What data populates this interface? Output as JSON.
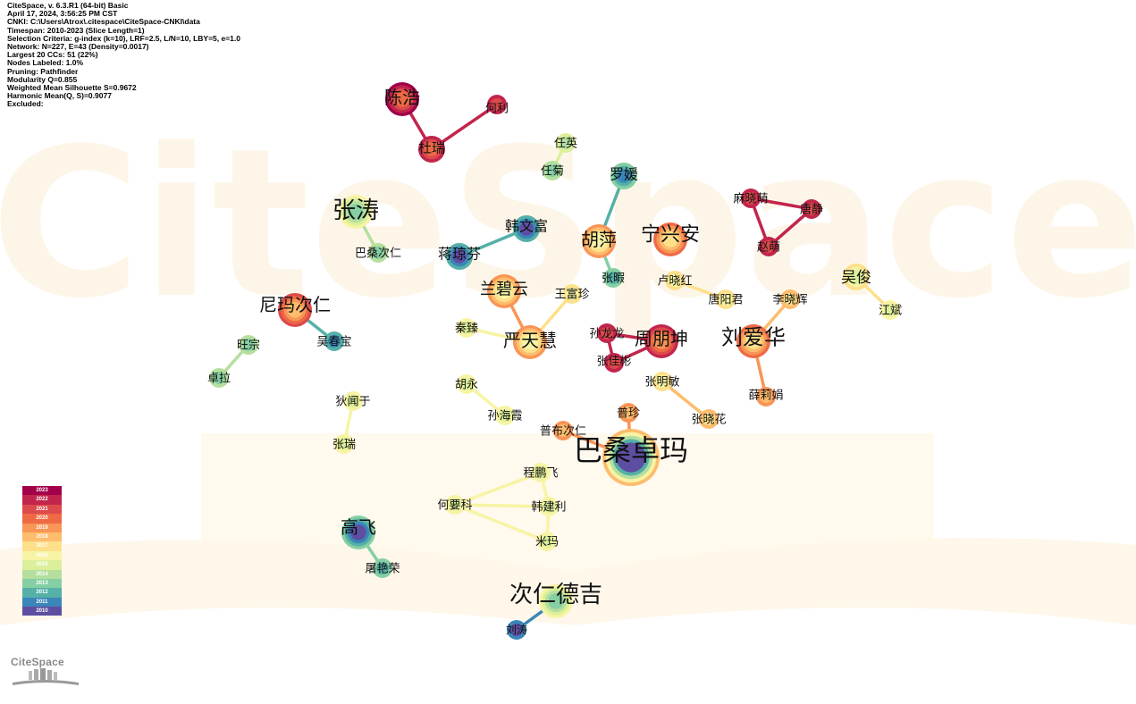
{
  "info_lines": [
    "CiteSpace, v. 6.3.R1 (64-bit) Basic",
    "April 17, 2024, 3:56:25 PM CST",
    "CNKI: C:\\Users\\Atrox\\.citespace\\CiteSpace-CNKI\\data",
    "Timespan: 2010-2023 (Slice Length=1)",
    "Selection Criteria: g-index (k=10), LRF=2.5, L/N=10, LBY=5, e=1.0",
    "Network: N=227, E=43 (Density=0.0017)",
    "Largest 20 CCs: 51 (22%)",
    "Nodes Labeled: 1.0%",
    "Pruning: Pathfinder",
    "Modularity Q=0.855",
    "Weighted Mean Silhouette S=0.9672",
    "Harmonic Mean(Q, S)=0.9077",
    "Excluded:"
  ],
  "watermark": {
    "text": "CiteSpace"
  },
  "logo": {
    "text": "CiteSpace"
  },
  "legend": [
    {
      "year": "2023",
      "color": "#a2004a"
    },
    {
      "year": "2022",
      "color": "#c2254c"
    },
    {
      "year": "2021",
      "color": "#dd4a4c"
    },
    {
      "year": "2020",
      "color": "#ee6a45"
    },
    {
      "year": "2019",
      "color": "#f99556"
    },
    {
      "year": "2018",
      "color": "#fdbd6d"
    },
    {
      "year": "2017",
      "color": "#fee08b"
    },
    {
      "year": "2016",
      "color": "#f7f4a4"
    },
    {
      "year": "2015",
      "color": "#dcef9a"
    },
    {
      "year": "2014",
      "color": "#b4df9e"
    },
    {
      "year": "2013",
      "color": "#86cfa3"
    },
    {
      "year": "2012",
      "color": "#55b0a7"
    },
    {
      "year": "2011",
      "color": "#3a86b8"
    },
    {
      "year": "2010",
      "color": "#5e4ea2"
    }
  ],
  "nodes": [
    {
      "id": "chenhao",
      "label": "陈浩",
      "year": "2023",
      "size": "large"
    },
    {
      "id": "heli",
      "label": "何利",
      "year": "2022",
      "size": "small"
    },
    {
      "id": "durui",
      "label": "杜瑞",
      "year": "2022",
      "size": "medium"
    },
    {
      "id": "renying",
      "label": "任英",
      "year": "2015",
      "size": "small"
    },
    {
      "id": "renju",
      "label": "任菊",
      "year": "2014",
      "size": "small"
    },
    {
      "id": "luoyuan",
      "label": "罗媛",
      "year": "2013",
      "size": "medium"
    },
    {
      "id": "zhangtao",
      "label": "张涛",
      "year": "2016",
      "size": "large"
    },
    {
      "id": "basangciren",
      "label": "巴桑次仁",
      "year": "2014",
      "size": "small"
    },
    {
      "id": "hanwenfu",
      "label": "韩文富",
      "year": "2012",
      "size": "medium"
    },
    {
      "id": "jiangqiongfen",
      "label": "蒋琼芬",
      "year": "2012",
      "size": "medium"
    },
    {
      "id": "huping",
      "label": "胡萍",
      "year": "2019",
      "size": "large"
    },
    {
      "id": "zhangxia",
      "label": "张暇",
      "year": "2013",
      "size": "small"
    },
    {
      "id": "ningxingan",
      "label": "宁兴安",
      "year": "2020",
      "size": "large"
    },
    {
      "id": "luxiaohong",
      "label": "卢晓红",
      "year": "2017",
      "size": "small"
    },
    {
      "id": "tangyangjun",
      "label": "唐阳君",
      "year": "2017",
      "size": "small"
    },
    {
      "id": "maxiaomeng",
      "label": "麻晓萌",
      "year": "2022",
      "size": "small"
    },
    {
      "id": "tangjing",
      "label": "唐静",
      "year": "2022",
      "size": "small"
    },
    {
      "id": "zhaomeng",
      "label": "赵萌",
      "year": "2022",
      "size": "small"
    },
    {
      "id": "wujun",
      "label": "吴俊",
      "year": "2017",
      "size": "medium"
    },
    {
      "id": "jiangbin",
      "label": "江斌",
      "year": "2016",
      "size": "small"
    },
    {
      "id": "lixiaohui",
      "label": "李晓辉",
      "year": "2018",
      "size": "small"
    },
    {
      "id": "nimaciren",
      "label": "尼玛次仁",
      "year": "2021",
      "size": "large"
    },
    {
      "id": "wuchunbao",
      "label": "吴春宝",
      "year": "2012",
      "size": "small"
    },
    {
      "id": "wangzong",
      "label": "旺宗",
      "year": "2014",
      "size": "small"
    },
    {
      "id": "zhuola",
      "label": "卓拉",
      "year": "2014",
      "size": "small"
    },
    {
      "id": "lanbiyun",
      "label": "兰碧云",
      "year": "2019",
      "size": "large"
    },
    {
      "id": "wangfuzhen",
      "label": "王富珍",
      "year": "2017",
      "size": "small"
    },
    {
      "id": "qinzhen",
      "label": "秦臻",
      "year": "2016",
      "size": "small"
    },
    {
      "id": "yantianhui",
      "label": "严天慧",
      "year": "2019",
      "size": "large"
    },
    {
      "id": "sunlonglong",
      "label": "孙龙龙",
      "year": "2022",
      "size": "small"
    },
    {
      "id": "zhoupengkun",
      "label": "周朋坤",
      "year": "2022",
      "size": "large"
    },
    {
      "id": "zhangjiabiao",
      "label": "张佳彬",
      "year": "2022",
      "size": "small"
    },
    {
      "id": "liuaihua",
      "label": "刘爱华",
      "year": "2020",
      "size": "large"
    },
    {
      "id": "xuelijuan",
      "label": "薛莉娟",
      "year": "2019",
      "size": "small"
    },
    {
      "id": "diwenyu",
      "label": "狄闻于",
      "year": "2016",
      "size": "small"
    },
    {
      "id": "zhangrui",
      "label": "张瑞",
      "year": "2016",
      "size": "small"
    },
    {
      "id": "huyong",
      "label": "胡永",
      "year": "2016",
      "size": "small"
    },
    {
      "id": "sunhaixia",
      "label": "孙海霞",
      "year": "2016",
      "size": "small"
    },
    {
      "id": "zhangmingmin",
      "label": "张明敏",
      "year": "2017",
      "size": "small"
    },
    {
      "id": "zhangxiaohua",
      "label": "张晓花",
      "year": "2018",
      "size": "small"
    },
    {
      "id": "puzhen",
      "label": "普珍",
      "year": "2019",
      "size": "small"
    },
    {
      "id": "pubuciren",
      "label": "普布次仁",
      "year": "2019",
      "size": "small"
    },
    {
      "id": "basangzhuoma",
      "label": "巴桑卓玛",
      "year": "2018",
      "size": "xlarge"
    },
    {
      "id": "chengpengfei",
      "label": "程鹏飞",
      "year": "2016",
      "size": "small"
    },
    {
      "id": "heyaoke",
      "label": "何要科",
      "year": "2016",
      "size": "small"
    },
    {
      "id": "hanjianli",
      "label": "韩建利",
      "year": "2016",
      "size": "small"
    },
    {
      "id": "mima",
      "label": "米玛",
      "year": "2016",
      "size": "small"
    },
    {
      "id": "gaofei",
      "label": "高飞",
      "year": "2013",
      "size": "large"
    },
    {
      "id": "tuyanrong",
      "label": "屠艳荣",
      "year": "2013",
      "size": "small"
    },
    {
      "id": "cirendeji",
      "label": "次仁德吉",
      "year": "2016",
      "size": "large"
    },
    {
      "id": "liutao",
      "label": "刘涛",
      "year": "2011",
      "size": "small"
    }
  ],
  "edges": [
    {
      "source": "chenhao",
      "target": "durui",
      "year": "2022"
    },
    {
      "source": "durui",
      "target": "heli",
      "year": "2022"
    },
    {
      "source": "renying",
      "target": "renju",
      "year": "2015"
    },
    {
      "source": "zhangtao",
      "target": "basangciren",
      "year": "2014"
    },
    {
      "source": "hanwenfu",
      "target": "jiangqiongfen",
      "year": "2012"
    },
    {
      "source": "luoyuan",
      "target": "huping",
      "year": "2012"
    },
    {
      "source": "huping",
      "target": "zhangxia",
      "year": "2013"
    },
    {
      "source": "luxiaohong",
      "target": "tangyangjun",
      "year": "2017"
    },
    {
      "source": "maxiaomeng",
      "target": "tangjing",
      "year": "2022"
    },
    {
      "source": "tangjing",
      "target": "zhaomeng",
      "year": "2022"
    },
    {
      "source": "maxiaomeng",
      "target": "zhaomeng",
      "year": "2022"
    },
    {
      "source": "wujun",
      "target": "jiangbin",
      "year": "2017"
    },
    {
      "source": "liuaihua",
      "target": "lixiaohui",
      "year": "2018"
    },
    {
      "source": "liuaihua",
      "target": "xuelijuan",
      "year": "2019"
    },
    {
      "source": "nimaciren",
      "target": "wuchunbao",
      "year": "2012"
    },
    {
      "source": "wangzong",
      "target": "zhuola",
      "year": "2014"
    },
    {
      "source": "yantianhui",
      "target": "lanbiyun",
      "year": "2019"
    },
    {
      "source": "yantianhui",
      "target": "wangfuzhen",
      "year": "2017"
    },
    {
      "source": "yantianhui",
      "target": "qinzhen",
      "year": "2016"
    },
    {
      "source": "sunlonglong",
      "target": "zhoupengkun",
      "year": "2022"
    },
    {
      "source": "sunlonglong",
      "target": "zhangjiabiao",
      "year": "2022"
    },
    {
      "source": "zhoupengkun",
      "target": "zhangjiabiao",
      "year": "2022"
    },
    {
      "source": "diwenyu",
      "target": "zhangrui",
      "year": "2016"
    },
    {
      "source": "huyong",
      "target": "sunhaixia",
      "year": "2016"
    },
    {
      "source": "zhangmingmin",
      "target": "zhangxiaohua",
      "year": "2018"
    },
    {
      "source": "basangzhuoma",
      "target": "puzhen",
      "year": "2019"
    },
    {
      "source": "basangzhuoma",
      "target": "pubuciren",
      "year": "2019"
    },
    {
      "source": "chengpengfei",
      "target": "heyaoke",
      "year": "2016"
    },
    {
      "source": "chengpengfei",
      "target": "hanjianli",
      "year": "2016"
    },
    {
      "source": "heyaoke",
      "target": "hanjianli",
      "year": "2016"
    },
    {
      "source": "heyaoke",
      "target": "mima",
      "year": "2016"
    },
    {
      "source": "hanjianli",
      "target": "mima",
      "year": "2016"
    },
    {
      "source": "gaofei",
      "target": "tuyanrong",
      "year": "2013"
    },
    {
      "source": "cirendeji",
      "target": "liutao",
      "year": "2011"
    }
  ]
}
